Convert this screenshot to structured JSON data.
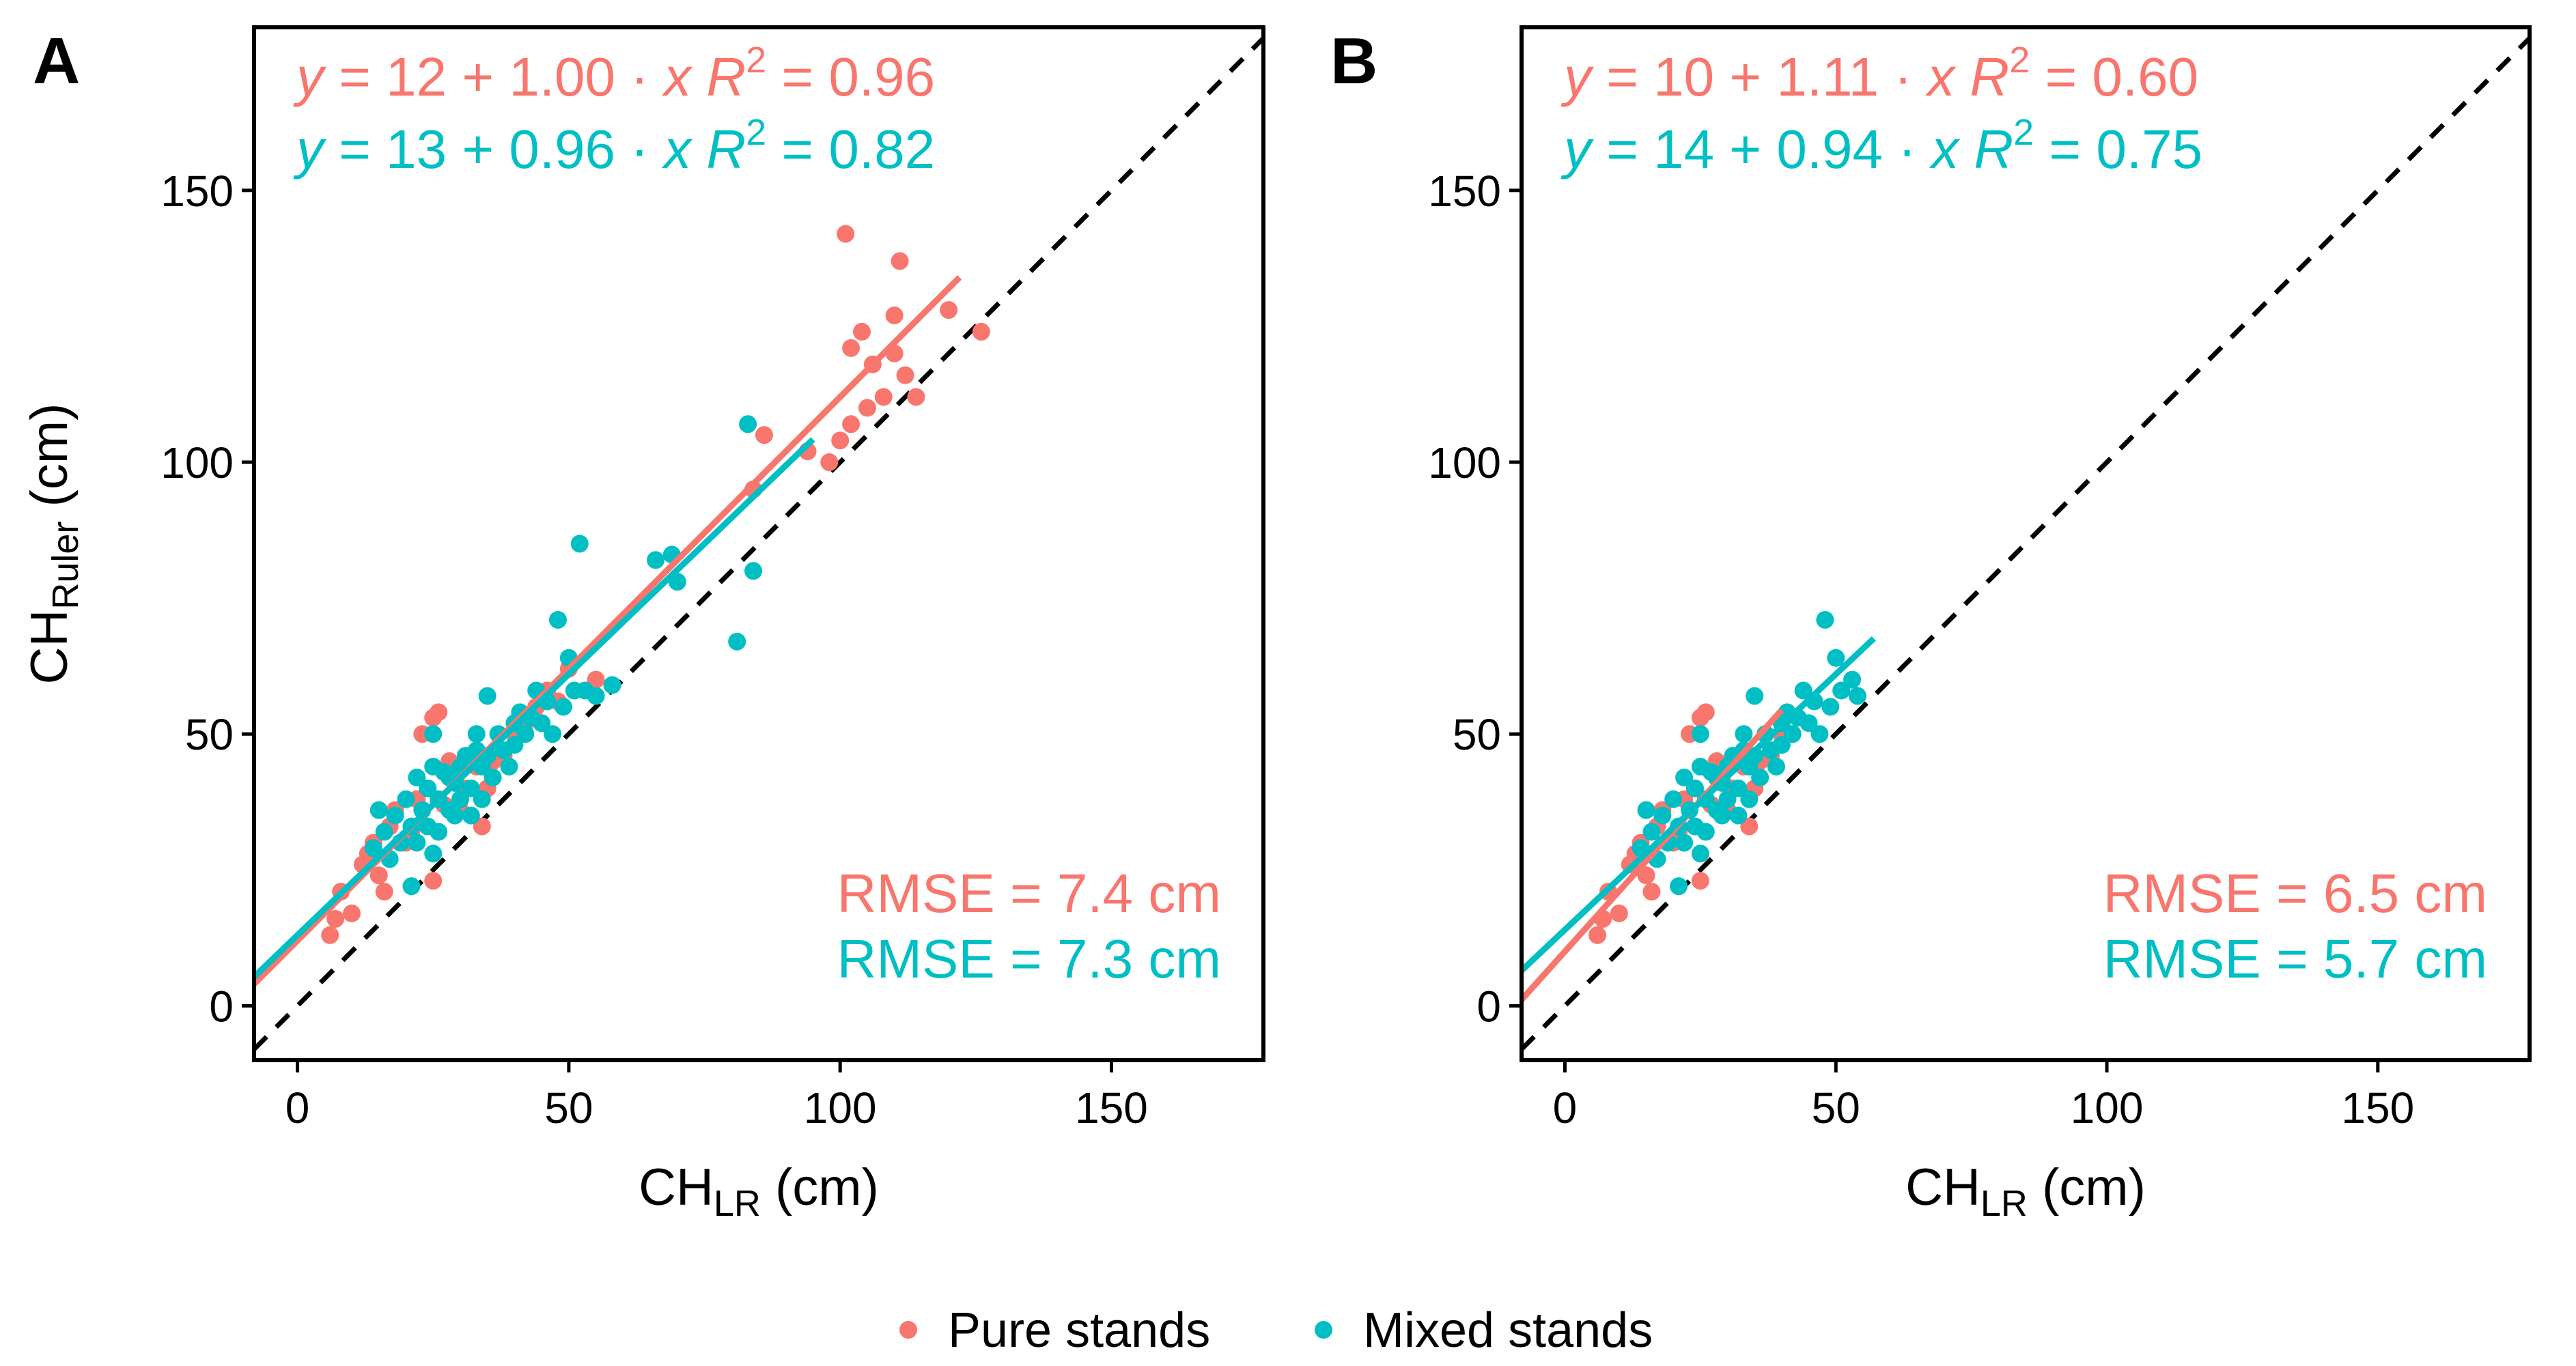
{
  "colors": {
    "pure": "#F8766D",
    "mixed": "#00BFC4",
    "axis": "#000000",
    "reference": "#000000"
  },
  "legend": {
    "position": "bottom",
    "items": [
      {
        "label": "Pure stands",
        "group": "pure"
      },
      {
        "label": "Mixed stands",
        "group": "mixed"
      }
    ]
  },
  "chart_data": [
    {
      "panel_label": "A",
      "type": "scatter",
      "xlabel": {
        "main": "CH",
        "sub": "LR",
        "unit": "(cm)"
      },
      "ylabel": {
        "main": "CH",
        "sub": "Ruler",
        "unit": "(cm)"
      },
      "xlim": [
        -8,
        178
      ],
      "ylim": [
        -10,
        180
      ],
      "xticks": [
        0,
        50,
        100,
        150
      ],
      "yticks": [
        0,
        50,
        100,
        150
      ],
      "xtick_labels": [
        "0",
        "50",
        "100",
        "150"
      ],
      "ytick_labels": [
        "0",
        "50",
        "100",
        "150"
      ],
      "grid": false,
      "reference_line": {
        "type": "1:1",
        "slope": 1,
        "intercept": 0,
        "style": "dashed"
      },
      "equations": [
        {
          "group": "pure",
          "lhs": "y",
          "eq1": " = 12 + 1.00 · ",
          "var": "x",
          "r2label": "R",
          "r2exp": "2",
          "eq2": " = 0.96"
        },
        {
          "group": "mixed",
          "lhs": "y",
          "eq1": " = 13 + 0.96 · ",
          "var": "x",
          "r2label": "R",
          "r2exp": "2",
          "eq2": " = 0.82"
        }
      ],
      "rmse": [
        {
          "group": "pure",
          "text": "RMSE = 7.4 cm"
        },
        {
          "group": "mixed",
          "text": "RMSE = 7.3 cm"
        }
      ],
      "series": [
        {
          "name": "Pure stands",
          "group": "pure",
          "fit": {
            "intercept": 12,
            "slope": 1.0,
            "x_range": [
              -8,
              122
            ]
          },
          "points": [
            [
              6,
              13
            ],
            [
              7,
              16
            ],
            [
              8,
              21
            ],
            [
              10,
              17
            ],
            [
              12,
              26
            ],
            [
              13,
              28
            ],
            [
              14,
              30
            ],
            [
              15,
              24
            ],
            [
              16,
              21
            ],
            [
              17,
              33
            ],
            [
              18,
              36
            ],
            [
              20,
              30
            ],
            [
              21,
              32
            ],
            [
              22,
              38
            ],
            [
              23,
              50
            ],
            [
              24,
              40
            ],
            [
              25,
              23
            ],
            [
              25,
              53
            ],
            [
              26,
              54
            ],
            [
              27,
              37
            ],
            [
              28,
              45
            ],
            [
              29,
              42
            ],
            [
              30,
              36
            ],
            [
              31,
              40
            ],
            [
              33,
              44
            ],
            [
              34,
              33
            ],
            [
              35,
              40
            ],
            [
              36,
              45
            ],
            [
              38,
              46
            ],
            [
              40,
              50
            ],
            [
              42,
              52
            ],
            [
              44,
              55
            ],
            [
              46,
              58
            ],
            [
              48,
              56
            ],
            [
              50,
              62
            ],
            [
              55,
              60
            ],
            [
              84,
              95
            ],
            [
              86,
              105
            ],
            [
              94,
              102
            ],
            [
              98,
              100
            ],
            [
              100,
              104
            ],
            [
              101,
              142
            ],
            [
              102,
              121
            ],
            [
              102,
              107
            ],
            [
              104,
              124
            ],
            [
              105,
              110
            ],
            [
              106,
              118
            ],
            [
              108,
              112
            ],
            [
              110,
              127
            ],
            [
              110,
              120
            ],
            [
              111,
              137
            ],
            [
              112,
              116
            ],
            [
              114,
              112
            ],
            [
              120,
              128
            ],
            [
              126,
              124
            ]
          ]
        },
        {
          "name": "Mixed stands",
          "group": "mixed",
          "fit": {
            "intercept": 13,
            "slope": 0.96,
            "x_range": [
              -8,
              95
            ]
          },
          "points": [
            [
              14,
              29
            ],
            [
              15,
              36
            ],
            [
              16,
              32
            ],
            [
              17,
              27
            ],
            [
              18,
              35
            ],
            [
              19,
              30
            ],
            [
              20,
              38
            ],
            [
              21,
              33
            ],
            [
              21,
              22
            ],
            [
              22,
              42
            ],
            [
              22,
              30
            ],
            [
              23,
              36
            ],
            [
              24,
              40
            ],
            [
              24,
              33
            ],
            [
              25,
              44
            ],
            [
              25,
              50
            ],
            [
              25,
              28
            ],
            [
              26,
              38
            ],
            [
              26,
              32
            ],
            [
              27,
              43
            ],
            [
              28,
              36
            ],
            [
              28,
              42
            ],
            [
              29,
              35
            ],
            [
              29,
              41
            ],
            [
              30,
              44
            ],
            [
              30,
              38
            ],
            [
              31,
              46
            ],
            [
              32,
              40
            ],
            [
              32,
              35
            ],
            [
              33,
              47
            ],
            [
              33,
              50
            ],
            [
              34,
              44
            ],
            [
              34,
              38
            ],
            [
              35,
              57
            ],
            [
              35,
              46
            ],
            [
              36,
              42
            ],
            [
              37,
              50
            ],
            [
              38,
              47
            ],
            [
              39,
              44
            ],
            [
              40,
              52
            ],
            [
              40,
              48
            ],
            [
              41,
              54
            ],
            [
              42,
              50
            ],
            [
              43,
              53
            ],
            [
              44,
              58
            ],
            [
              45,
              52
            ],
            [
              46,
              56
            ],
            [
              47,
              50
            ],
            [
              48,
              71
            ],
            [
              49,
              55
            ],
            [
              50,
              64
            ],
            [
              51,
              58
            ],
            [
              52,
              85
            ],
            [
              53,
              58
            ],
            [
              55,
              57
            ],
            [
              58,
              59
            ],
            [
              66,
              82
            ],
            [
              69,
              83
            ],
            [
              70,
              78
            ],
            [
              81,
              67
            ],
            [
              83,
              107
            ],
            [
              84,
              80
            ]
          ]
        }
      ]
    },
    {
      "panel_label": "B",
      "type": "scatter",
      "xlabel": {
        "main": "CH",
        "sub": "LR",
        "unit": "(cm)"
      },
      "ylabel": null,
      "xlim": [
        -8,
        178
      ],
      "ylim": [
        -10,
        180
      ],
      "xticks": [
        0,
        50,
        100,
        150
      ],
      "yticks": [
        0,
        50,
        100,
        150
      ],
      "xtick_labels": [
        "0",
        "50",
        "100",
        "150"
      ],
      "ytick_labels": [
        "0",
        "50",
        "100",
        "150"
      ],
      "grid": false,
      "reference_line": {
        "type": "1:1",
        "slope": 1,
        "intercept": 0,
        "style": "dashed"
      },
      "equations": [
        {
          "group": "pure",
          "lhs": "y",
          "eq1": " = 10 + 1.11 · ",
          "var": "x",
          "r2label": "R",
          "r2exp": "2",
          "eq2": " = 0.60"
        },
        {
          "group": "mixed",
          "lhs": "y",
          "eq1": " = 14 + 0.94 · ",
          "var": "x",
          "r2label": "R",
          "r2exp": "2",
          "eq2": " = 0.75"
        }
      ],
      "rmse": [
        {
          "group": "pure",
          "text": "RMSE = 6.5 cm"
        },
        {
          "group": "mixed",
          "text": "RMSE = 5.7 cm"
        }
      ],
      "series": [
        {
          "name": "Pure stands",
          "group": "pure",
          "fit": {
            "intercept": 10,
            "slope": 1.11,
            "x_range": [
              -8,
              40
            ]
          },
          "points": [
            [
              6,
              13
            ],
            [
              7,
              16
            ],
            [
              8,
              21
            ],
            [
              10,
              17
            ],
            [
              12,
              26
            ],
            [
              13,
              28
            ],
            [
              14,
              30
            ],
            [
              15,
              24
            ],
            [
              16,
              21
            ],
            [
              17,
              33
            ],
            [
              18,
              36
            ],
            [
              20,
              30
            ],
            [
              21,
              32
            ],
            [
              22,
              38
            ],
            [
              23,
              50
            ],
            [
              24,
              40
            ],
            [
              25,
              23
            ],
            [
              25,
              53
            ],
            [
              26,
              54
            ],
            [
              27,
              37
            ],
            [
              28,
              45
            ],
            [
              29,
              42
            ],
            [
              30,
              36
            ],
            [
              31,
              40
            ],
            [
              33,
              44
            ],
            [
              34,
              33
            ],
            [
              35,
              40
            ],
            [
              36,
              45
            ],
            [
              38,
              46
            ],
            [
              40,
              50
            ]
          ]
        },
        {
          "name": "Mixed stands",
          "group": "mixed",
          "fit": {
            "intercept": 14,
            "slope": 0.94,
            "x_range": [
              -8,
              57
            ]
          },
          "points": [
            [
              14,
              29
            ],
            [
              15,
              36
            ],
            [
              16,
              32
            ],
            [
              17,
              27
            ],
            [
              18,
              35
            ],
            [
              19,
              30
            ],
            [
              20,
              38
            ],
            [
              21,
              33
            ],
            [
              21,
              22
            ],
            [
              22,
              42
            ],
            [
              22,
              30
            ],
            [
              23,
              36
            ],
            [
              24,
              40
            ],
            [
              24,
              33
            ],
            [
              25,
              44
            ],
            [
              25,
              50
            ],
            [
              25,
              28
            ],
            [
              26,
              38
            ],
            [
              26,
              32
            ],
            [
              27,
              43
            ],
            [
              28,
              36
            ],
            [
              28,
              42
            ],
            [
              29,
              35
            ],
            [
              29,
              41
            ],
            [
              30,
              44
            ],
            [
              30,
              38
            ],
            [
              31,
              46
            ],
            [
              32,
              40
            ],
            [
              32,
              35
            ],
            [
              33,
              47
            ],
            [
              33,
              50
            ],
            [
              34,
              44
            ],
            [
              34,
              38
            ],
            [
              35,
              57
            ],
            [
              35,
              46
            ],
            [
              36,
              42
            ],
            [
              37,
              50
            ],
            [
              38,
              47
            ],
            [
              39,
              44
            ],
            [
              40,
              52
            ],
            [
              40,
              48
            ],
            [
              41,
              54
            ],
            [
              42,
              50
            ],
            [
              43,
              53
            ],
            [
              44,
              58
            ],
            [
              45,
              52
            ],
            [
              46,
              56
            ],
            [
              47,
              50
            ],
            [
              48,
              71
            ],
            [
              49,
              55
            ],
            [
              50,
              64
            ],
            [
              51,
              58
            ],
            [
              53,
              60
            ],
            [
              54,
              57
            ]
          ]
        }
      ]
    }
  ]
}
